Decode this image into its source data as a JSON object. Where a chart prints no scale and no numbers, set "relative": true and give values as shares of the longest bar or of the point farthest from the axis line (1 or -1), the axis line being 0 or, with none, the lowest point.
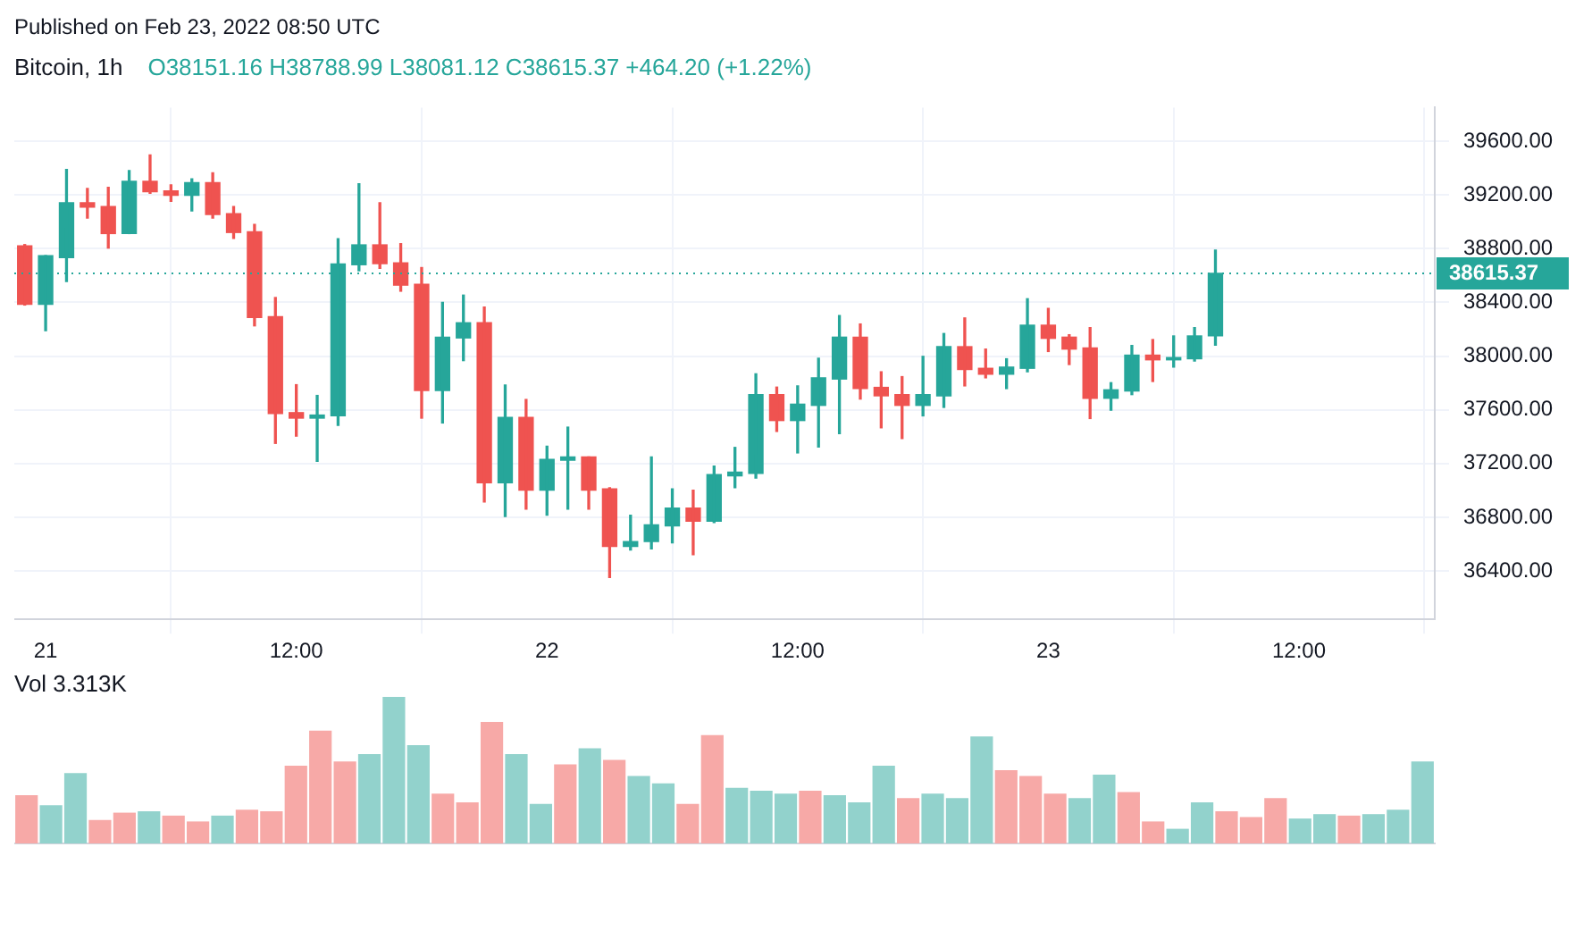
{
  "chart_data": [
    {
      "type": "candlestick",
      "title": "Bitcoin, 1h",
      "subtitle": "O38151.16 H38788.99 L38081.12 C38615.37 +464.20 (+1.22%)",
      "annotations": [
        "Published on Feb 23, 2022 08:50 UTC"
      ],
      "x": [
        "2022-02-20T23:00",
        "2022-02-21T00:00",
        "2022-02-21T01:00",
        "2022-02-21T02:00",
        "2022-02-21T03:00",
        "2022-02-21T04:00",
        "2022-02-21T05:00",
        "2022-02-21T06:00",
        "2022-02-21T07:00",
        "2022-02-21T08:00",
        "2022-02-21T09:00",
        "2022-02-21T10:00",
        "2022-02-21T11:00",
        "2022-02-21T12:00",
        "2022-02-21T13:00",
        "2022-02-21T14:00",
        "2022-02-21T15:00",
        "2022-02-21T16:00",
        "2022-02-21T17:00",
        "2022-02-21T18:00",
        "2022-02-21T19:00",
        "2022-02-21T20:00",
        "2022-02-21T21:00",
        "2022-02-21T22:00",
        "2022-02-21T23:00",
        "2022-02-22T00:00",
        "2022-02-22T01:00",
        "2022-02-22T02:00",
        "2022-02-22T03:00",
        "2022-02-22T04:00",
        "2022-02-22T05:00",
        "2022-02-22T06:00",
        "2022-02-22T07:00",
        "2022-02-22T08:00",
        "2022-02-22T09:00",
        "2022-02-22T10:00",
        "2022-02-22T11:00",
        "2022-02-22T12:00",
        "2022-02-22T13:00",
        "2022-02-22T14:00",
        "2022-02-22T15:00",
        "2022-02-22T16:00",
        "2022-02-22T17:00",
        "2022-02-22T18:00",
        "2022-02-22T19:00",
        "2022-02-22T20:00",
        "2022-02-22T21:00",
        "2022-02-22T22:00",
        "2022-02-22T23:00",
        "2022-02-23T00:00",
        "2022-02-23T01:00",
        "2022-02-23T02:00",
        "2022-02-23T03:00",
        "2022-02-23T04:00",
        "2022-02-23T05:00",
        "2022-02-23T06:00",
        "2022-02-23T07:00",
        "2022-02-23T08:00"
      ],
      "ohlc": [
        [
          38820,
          38830,
          38380,
          38385
        ],
        [
          38385,
          38748,
          38189,
          38748
        ],
        [
          38733,
          39390,
          38555,
          39141
        ],
        [
          39141,
          39248,
          39027,
          39108
        ],
        [
          39114,
          39257,
          38804,
          38912
        ],
        [
          38912,
          39381,
          38912,
          39301
        ],
        [
          39301,
          39497,
          39212,
          39224
        ],
        [
          39230,
          39274,
          39152,
          39197
        ],
        [
          39197,
          39319,
          39081,
          39292
        ],
        [
          39292,
          39364,
          39027,
          39054
        ],
        [
          39060,
          39114,
          38876,
          38920
        ],
        [
          38926,
          38980,
          38225,
          38287
        ],
        [
          38293,
          38436,
          37350,
          37573
        ],
        [
          37579,
          37787,
          37404,
          37538
        ],
        [
          37538,
          37707,
          37216,
          37561
        ],
        [
          37556,
          38873,
          37484,
          38686
        ],
        [
          38680,
          39283,
          38635,
          38828
        ],
        [
          38828,
          39141,
          38653,
          38688
        ],
        [
          38694,
          38837,
          38483,
          38528
        ],
        [
          38534,
          38659,
          37538,
          37743
        ],
        [
          37743,
          38400,
          37502,
          38141
        ],
        [
          38135,
          38454,
          37966,
          38248
        ],
        [
          38248,
          38365,
          36913,
          37056
        ],
        [
          37056,
          37784,
          36806,
          37543
        ],
        [
          37543,
          37677,
          36860,
          37002
        ],
        [
          37002,
          37329,
          36815,
          37231
        ],
        [
          37225,
          37471,
          36860,
          37249
        ],
        [
          37249,
          37249,
          36860,
          37002
        ],
        [
          37011,
          37020,
          36351,
          36583
        ],
        [
          36583,
          36815,
          36556,
          36619
        ],
        [
          36619,
          37249,
          36565,
          36744
        ],
        [
          36735,
          37011,
          36610,
          36869
        ],
        [
          36869,
          37002,
          36521,
          36770
        ],
        [
          36770,
          37181,
          36761,
          37118
        ],
        [
          37109,
          37320,
          37020,
          37136
        ],
        [
          37127,
          37868,
          37091,
          37713
        ],
        [
          37713,
          37769,
          37439,
          37520
        ],
        [
          37520,
          37778,
          37279,
          37642
        ],
        [
          37633,
          37984,
          37323,
          37838
        ],
        [
          37829,
          38301,
          37422,
          38141
        ],
        [
          38141,
          38239,
          37680,
          37758
        ],
        [
          37767,
          37883,
          37466,
          37704
        ],
        [
          37713,
          37847,
          37386,
          37633
        ],
        [
          37633,
          37998,
          37555,
          37713
        ],
        [
          37704,
          38168,
          37618,
          38070
        ],
        [
          38070,
          38284,
          37778,
          37900
        ],
        [
          37909,
          38052,
          37838,
          37865
        ],
        [
          37865,
          37980,
          37758,
          37918
        ],
        [
          37909,
          38427,
          37883,
          38230
        ],
        [
          38230,
          38355,
          38034,
          38132
        ],
        [
          38141,
          38159,
          37937,
          38052
        ],
        [
          38061,
          38212,
          37535,
          37686
        ],
        [
          37686,
          37802,
          37597,
          37749
        ],
        [
          37740,
          38079,
          37713,
          38007
        ],
        [
          38007,
          38123,
          37811,
          37972
        ],
        [
          37972,
          38150,
          37918,
          37989
        ],
        [
          37980,
          38212,
          37963,
          38150
        ],
        [
          38151.16,
          38788.99,
          38081.12,
          38615.37
        ]
      ],
      "colors": [
        "#ef5350",
        "#26a69a",
        "#26a69a",
        "#ef5350",
        "#ef5350",
        "#26a69a",
        "#ef5350",
        "#ef5350",
        "#26a69a",
        "#ef5350",
        "#ef5350",
        "#ef5350",
        "#ef5350",
        "#ef5350",
        "#26a69a",
        "#26a69a",
        "#26a69a",
        "#ef5350",
        "#ef5350",
        "#ef5350",
        "#26a69a",
        "#26a69a",
        "#ef5350",
        "#26a69a",
        "#ef5350",
        "#26a69a",
        "#26a69a",
        "#ef5350",
        "#ef5350",
        "#26a69a",
        "#26a69a",
        "#26a69a",
        "#ef5350",
        "#26a69a",
        "#26a69a",
        "#26a69a",
        "#ef5350",
        "#26a69a",
        "#26a69a",
        "#26a69a",
        "#ef5350",
        "#ef5350",
        "#ef5350",
        "#26a69a",
        "#26a69a",
        "#ef5350",
        "#ef5350",
        "#26a69a",
        "#26a69a",
        "#ef5350",
        "#ef5350",
        "#ef5350",
        "#26a69a",
        "#26a69a",
        "#ef5350",
        "#26a69a",
        "#26a69a",
        "#26a69a"
      ],
      "xlim": [
        "2022-02-20T22:30",
        "2022-02-23T18:30"
      ],
      "xticks": [
        {
          "value": "2022-02-21",
          "label": "21"
        },
        {
          "value": "2022-02-21T12:00",
          "label": "12:00"
        },
        {
          "value": "2022-02-22",
          "label": "22"
        },
        {
          "value": "2022-02-22T12:00",
          "label": "12:00"
        },
        {
          "value": "2022-02-23",
          "label": "23"
        },
        {
          "value": "2022-02-23T12:00",
          "label": "12:00"
        }
      ],
      "ylim": [
        36040,
        39850
      ],
      "yticks": [
        {
          "value": 36400,
          "label": "36400.00"
        },
        {
          "value": 36800,
          "label": "36800.00"
        },
        {
          "value": 37200,
          "label": "37200.00"
        },
        {
          "value": 37600,
          "label": "37600.00"
        },
        {
          "value": 38000,
          "label": "38000.00"
        },
        {
          "value": 38400,
          "label": "38400.00"
        },
        {
          "value": 38800,
          "label": "38800.00"
        },
        {
          "value": 39200,
          "label": "39200.00"
        },
        {
          "value": 39600,
          "label": "39600.00"
        }
      ],
      "ref_lines": [
        {
          "axis": "y",
          "value": 38615.37,
          "label": "38615.37",
          "color": "#26a69a",
          "line_style": "dotted"
        }
      ],
      "grid": true,
      "legend": false
    },
    {
      "type": "bar",
      "title": "Vol 3.313K",
      "relative": true,
      "categories": [
        null,
        null,
        null,
        null,
        null,
        null,
        null,
        null,
        null,
        null,
        null,
        null,
        null,
        null,
        null,
        null,
        null,
        null,
        null,
        null,
        null,
        null,
        null,
        null,
        null,
        null,
        null,
        null,
        null,
        null,
        null,
        null,
        null,
        null,
        null,
        null,
        null,
        null,
        null,
        null,
        null,
        null,
        null,
        null,
        null,
        null,
        null,
        null,
        null,
        null,
        null,
        null,
        null,
        null,
        null,
        null,
        null,
        null
      ],
      "values": [
        0.33,
        0.26,
        0.48,
        0.16,
        0.21,
        0.22,
        0.19,
        0.15,
        0.19,
        0.23,
        0.22,
        0.53,
        0.77,
        0.56,
        0.61,
        1,
        0.67,
        0.34,
        0.28,
        0.83,
        0.61,
        0.27,
        0.54,
        0.65,
        0.57,
        0.46,
        0.41,
        0.27,
        0.74,
        0.38,
        0.36,
        0.34,
        0.36,
        0.33,
        0.28,
        0.53,
        0.31,
        0.34,
        0.31,
        0.73,
        0.5,
        0.46,
        0.34,
        0.31,
        0.47,
        0.35,
        0.15,
        0.1,
        0.28,
        0.22,
        0.18,
        0.31,
        0.17,
        0.2,
        0.19,
        0.2,
        0.23,
        0.56
      ],
      "colors": [
        "#f7a9a7",
        "#92d2cc",
        "#92d2cc",
        "#f7a9a7",
        "#f7a9a7",
        "#92d2cc",
        "#f7a9a7",
        "#f7a9a7",
        "#92d2cc",
        "#f7a9a7",
        "#f7a9a7",
        "#f7a9a7",
        "#f7a9a7",
        "#f7a9a7",
        "#92d2cc",
        "#92d2cc",
        "#92d2cc",
        "#f7a9a7",
        "#f7a9a7",
        "#f7a9a7",
        "#92d2cc",
        "#92d2cc",
        "#f7a9a7",
        "#92d2cc",
        "#f7a9a7",
        "#92d2cc",
        "#92d2cc",
        "#f7a9a7",
        "#f7a9a7",
        "#92d2cc",
        "#92d2cc",
        "#92d2cc",
        "#f7a9a7",
        "#92d2cc",
        "#92d2cc",
        "#92d2cc",
        "#f7a9a7",
        "#92d2cc",
        "#92d2cc",
        "#92d2cc",
        "#f7a9a7",
        "#f7a9a7",
        "#f7a9a7",
        "#92d2cc",
        "#92d2cc",
        "#f7a9a7",
        "#f7a9a7",
        "#92d2cc",
        "#92d2cc",
        "#f7a9a7",
        "#f7a9a7",
        "#f7a9a7",
        "#92d2cc",
        "#92d2cc",
        "#f7a9a7",
        "#92d2cc",
        "#92d2cc",
        "#92d2cc"
      ],
      "legend": false
    }
  ]
}
